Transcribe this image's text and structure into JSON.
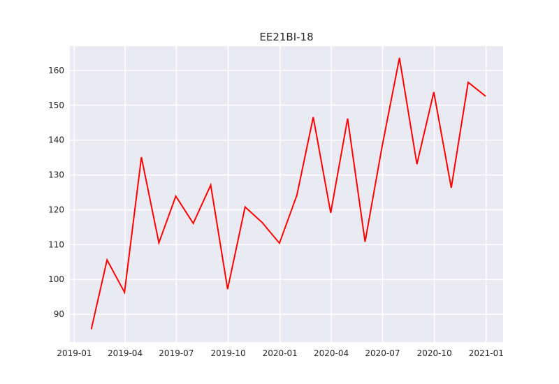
{
  "chart_data": {
    "type": "line",
    "title": "EE21BI-18",
    "xlabel": "",
    "ylabel": "",
    "x_axis_type": "date",
    "xlim": [
      "2018-12-24",
      "2021-01-31"
    ],
    "ylim": [
      82,
      167
    ],
    "grid": true,
    "x_ticks": [
      {
        "date": "2019-01-01",
        "label": "2019-01"
      },
      {
        "date": "2019-04-01",
        "label": "2019-04"
      },
      {
        "date": "2019-07-01",
        "label": "2019-07"
      },
      {
        "date": "2019-10-01",
        "label": "2019-10"
      },
      {
        "date": "2020-01-01",
        "label": "2020-01"
      },
      {
        "date": "2020-04-01",
        "label": "2020-04"
      },
      {
        "date": "2020-07-01",
        "label": "2020-07"
      },
      {
        "date": "2020-10-01",
        "label": "2020-10"
      },
      {
        "date": "2021-01-01",
        "label": "2021-01"
      }
    ],
    "y_ticks": [
      90,
      100,
      110,
      120,
      130,
      140,
      150,
      160
    ],
    "series": [
      {
        "color": "#ff0000",
        "x": [
          "2019-01-31",
          "2019-02-28",
          "2019-03-31",
          "2019-04-30",
          "2019-05-31",
          "2019-06-30",
          "2019-07-31",
          "2019-08-31",
          "2019-09-30",
          "2019-10-31",
          "2019-11-30",
          "2019-12-31",
          "2020-01-31",
          "2020-02-29",
          "2020-03-31",
          "2020-04-30",
          "2020-05-31",
          "2020-06-30",
          "2020-07-31",
          "2020-08-31",
          "2020-09-30",
          "2020-10-31",
          "2020-11-30",
          "2020-12-31"
        ],
        "values": [
          85.7,
          105.6,
          96.3,
          135.1,
          110.5,
          123.9,
          116.1,
          127.1,
          97.2,
          120.8,
          116.4,
          110.4,
          124.2,
          146.6,
          119.1,
          146.2,
          110.8,
          138.0,
          163.6,
          133.1,
          153.8,
          126.3,
          156.6,
          152.6
        ]
      }
    ]
  }
}
